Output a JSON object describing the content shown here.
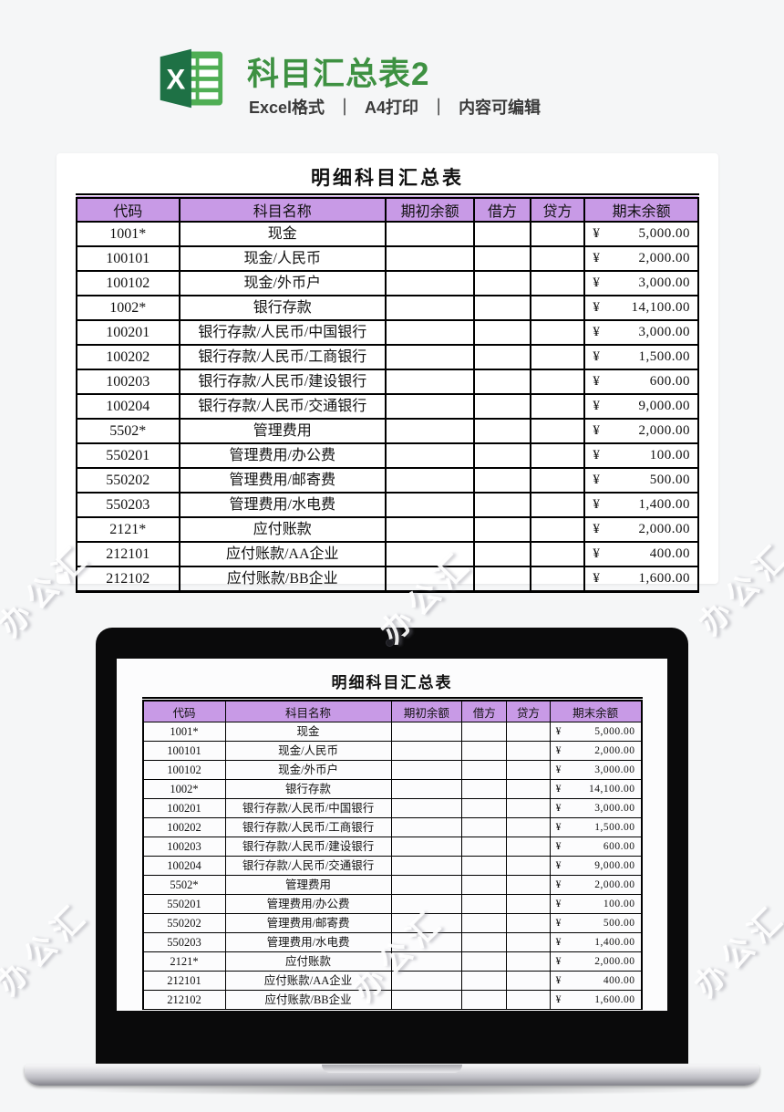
{
  "colors": {
    "page_bg": "#f5f6f7",
    "accent_green": "#3e9142",
    "table_header_bg": "#c89ae6",
    "excel_dark_green": "#1e7145",
    "excel_light_green": "#4fae54"
  },
  "header": {
    "title": "科目汇总表2",
    "subtitle_parts": [
      "Excel格式",
      "A4打印",
      "内容可编辑"
    ],
    "separator": "｜",
    "logo_letter": "X"
  },
  "document": {
    "title": "明细科目汇总表",
    "columns": [
      "代码",
      "科目名称",
      "期初余额",
      "借方",
      "贷方",
      "期末余额"
    ],
    "rows": [
      {
        "code": "1001*",
        "name": "现金",
        "opening": "",
        "debit": "",
        "credit": "",
        "currency": "¥",
        "ending": "5,000.00"
      },
      {
        "code": "100101",
        "name": "现金/人民币",
        "opening": "",
        "debit": "",
        "credit": "",
        "currency": "¥",
        "ending": "2,000.00"
      },
      {
        "code": "100102",
        "name": "现金/外币户",
        "opening": "",
        "debit": "",
        "credit": "",
        "currency": "¥",
        "ending": "3,000.00"
      },
      {
        "code": "1002*",
        "name": "银行存款",
        "opening": "",
        "debit": "",
        "credit": "",
        "currency": "¥",
        "ending": "14,100.00"
      },
      {
        "code": "100201",
        "name": "银行存款/人民币/中国银行",
        "opening": "",
        "debit": "",
        "credit": "",
        "currency": "¥",
        "ending": "3,000.00"
      },
      {
        "code": "100202",
        "name": "银行存款/人民币/工商银行",
        "opening": "",
        "debit": "",
        "credit": "",
        "currency": "¥",
        "ending": "1,500.00"
      },
      {
        "code": "100203",
        "name": "银行存款/人民币/建设银行",
        "opening": "",
        "debit": "",
        "credit": "",
        "currency": "¥",
        "ending": "600.00"
      },
      {
        "code": "100204",
        "name": "银行存款/人民币/交通银行",
        "opening": "",
        "debit": "",
        "credit": "",
        "currency": "¥",
        "ending": "9,000.00"
      },
      {
        "code": "5502*",
        "name": "管理费用",
        "opening": "",
        "debit": "",
        "credit": "",
        "currency": "¥",
        "ending": "2,000.00"
      },
      {
        "code": "550201",
        "name": "管理费用/办公费",
        "opening": "",
        "debit": "",
        "credit": "",
        "currency": "¥",
        "ending": "100.00"
      },
      {
        "code": "550202",
        "name": "管理费用/邮寄费",
        "opening": "",
        "debit": "",
        "credit": "",
        "currency": "¥",
        "ending": "500.00"
      },
      {
        "code": "550203",
        "name": "管理费用/水电费",
        "opening": "",
        "debit": "",
        "credit": "",
        "currency": "¥",
        "ending": "1,400.00"
      },
      {
        "code": "2121*",
        "name": "应付账款",
        "opening": "",
        "debit": "",
        "credit": "",
        "currency": "¥",
        "ending": "2,000.00"
      },
      {
        "code": "212101",
        "name": "应付账款/AA企业",
        "opening": "",
        "debit": "",
        "credit": "",
        "currency": "¥",
        "ending": "400.00"
      },
      {
        "code": "212102",
        "name": "应付账款/BB企业",
        "opening": "",
        "debit": "",
        "credit": "",
        "currency": "¥",
        "ending": "1,600.00"
      }
    ]
  },
  "watermark": {
    "text": "办公汇"
  }
}
